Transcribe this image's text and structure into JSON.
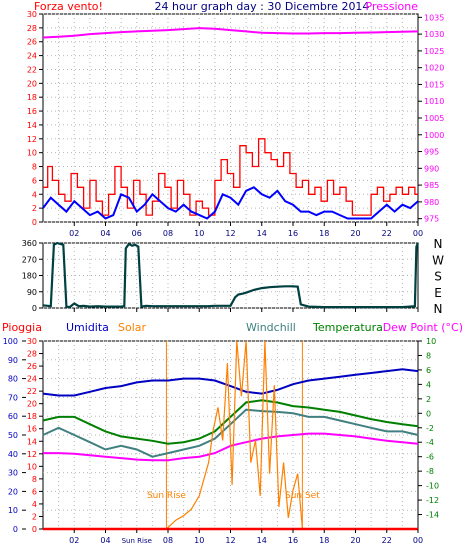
{
  "colors": {
    "wind_speed": "#ff0000",
    "wind_avg": "#0000ff",
    "pressure": "#ff00ff",
    "wind_dir": "#004040",
    "rain": "#ff0000",
    "humidity": "#0000c0",
    "solar": "#ff8000",
    "windchill": "#408080",
    "temperature": "#008000",
    "dew_point": "#ff00ff",
    "sun_marker": "#ff8000",
    "frame": "#000000",
    "grid": "#b8b8b8"
  },
  "header": {
    "left_title": "Forza vento!",
    "center_title": "24 hour graph day : 30 Dicembre 2014",
    "right_title": "Pressione"
  },
  "legend2": {
    "rain": "Pioggia",
    "humidity": "Umidita",
    "solar": "Solar",
    "windchill": "Windchill",
    "temperature": "Temperatura",
    "dew_point": "Dew Point (°C)"
  },
  "sun": {
    "rise_label": "Sun Rise",
    "set_label": "Sun Set",
    "rise_time": 7.9,
    "set_time": 16.6
  },
  "chart_data": [
    {
      "type": "line",
      "name": "wind-and-pressure",
      "xlim": [
        0,
        24
      ],
      "x_ticks": [
        "02",
        "04",
        "06",
        "08",
        "10",
        "12",
        "14",
        "16",
        "18",
        "20",
        "22",
        "00"
      ],
      "ylim_left": [
        0,
        30
      ],
      "y_ticks_left": [
        "0",
        "2",
        "4",
        "6",
        "8",
        "10",
        "12",
        "14",
        "16",
        "18",
        "20",
        "22",
        "24",
        "26",
        "28",
        "30"
      ],
      "ylim_right": [
        974,
        1036
      ],
      "y_ticks_right": [
        "975",
        "980",
        "985",
        "990",
        "995",
        "1000",
        "1005",
        "1010",
        "1015",
        "1020",
        "1025",
        "1030",
        "1035"
      ],
      "series": [
        {
          "key": "wind_speed",
          "x": [
            0,
            0.3,
            0.6,
            1,
            1.4,
            1.8,
            2.2,
            2.6,
            3,
            3.4,
            3.8,
            4.2,
            4.6,
            5,
            5.4,
            5.8,
            6.2,
            6.6,
            7,
            7.4,
            7.8,
            8.2,
            8.6,
            9,
            9.4,
            9.8,
            10.2,
            10.6,
            11,
            11.4,
            11.8,
            12.2,
            12.6,
            13,
            13.4,
            13.8,
            14.2,
            14.6,
            15,
            15.4,
            15.8,
            16.2,
            16.6,
            17,
            17.4,
            17.8,
            18.2,
            18.6,
            19,
            19.4,
            19.8,
            20.2,
            20.6,
            21,
            21.4,
            21.8,
            22.2,
            22.6,
            23,
            23.4,
            23.8
          ],
          "y": [
            5,
            8,
            6,
            4,
            3,
            7,
            5,
            2,
            6,
            3,
            1,
            4,
            8,
            5,
            2,
            6,
            4,
            1,
            3,
            7,
            5,
            2,
            6,
            4,
            1,
            3,
            2,
            1,
            6,
            9,
            7,
            5,
            11,
            10,
            8,
            12,
            10,
            9,
            8,
            10,
            7,
            5,
            6,
            4,
            5,
            3,
            6,
            4,
            5,
            3,
            1,
            1,
            1,
            4,
            5,
            3,
            4,
            5,
            4,
            5,
            4
          ]
        },
        {
          "key": "wind_avg",
          "x": [
            0,
            0.5,
            1,
            1.5,
            2,
            2.5,
            3,
            3.5,
            4,
            4.5,
            5,
            5.5,
            6,
            6.5,
            7,
            7.5,
            8,
            8.5,
            9,
            9.5,
            10,
            10.5,
            11,
            11.5,
            12,
            12.5,
            13,
            13.5,
            14,
            14.5,
            15,
            15.5,
            16,
            16.5,
            17,
            17.5,
            18,
            18.5,
            19,
            19.5,
            20,
            20.5,
            21,
            21.5,
            22,
            22.5,
            23,
            23.5,
            24
          ],
          "y": [
            2,
            3.5,
            2.5,
            1.5,
            3,
            2,
            1,
            1.5,
            0.5,
            1,
            4,
            3.5,
            1.5,
            2.5,
            4,
            3,
            2,
            1.5,
            2.5,
            1.5,
            1,
            0.5,
            1.5,
            4,
            3.5,
            2.5,
            4.5,
            5,
            4,
            3.5,
            4.5,
            3,
            2.5,
            1.5,
            1.5,
            1,
            1.5,
            1.5,
            1,
            0.5,
            0.5,
            0.5,
            0.5,
            1.5,
            2.5,
            1.5,
            2.5,
            2,
            3
          ]
        },
        {
          "key": "pressure",
          "x": [
            0,
            1,
            2,
            3,
            4,
            5,
            6,
            7,
            8,
            9,
            10,
            11,
            12,
            13,
            14,
            15,
            16,
            17,
            18,
            19,
            20,
            21,
            22,
            23,
            24
          ],
          "y": [
            1029,
            1029.2,
            1029.5,
            1030,
            1030.3,
            1030.6,
            1030.8,
            1031,
            1031.2,
            1031.5,
            1031.8,
            1031.6,
            1031.2,
            1030.8,
            1030.4,
            1030.3,
            1030.2,
            1030.2,
            1030.3,
            1030.3,
            1030.4,
            1030.5,
            1030.6,
            1030.7,
            1030.8
          ]
        }
      ]
    },
    {
      "type": "line",
      "name": "wind-direction",
      "xlim": [
        0,
        24
      ],
      "ylim": [
        0,
        360
      ],
      "y_ticks": [
        "0",
        "90",
        "180",
        "270",
        "360"
      ],
      "direction_labels": [
        "N",
        "W",
        "S",
        "E",
        "N"
      ],
      "series": [
        {
          "key": "wind_dir",
          "x": [
            0,
            0.5,
            0.7,
            0.9,
            1.1,
            1.3,
            1.5,
            1.7,
            2,
            2.3,
            2.6,
            3,
            3.5,
            4,
            4.5,
            5,
            5.2,
            5.3,
            5.5,
            5.7,
            5.9,
            6.1,
            6.3,
            6.6,
            7,
            8,
            9,
            10,
            10.5,
            11,
            11.5,
            12,
            12.3,
            12.5,
            12.8,
            13,
            13.5,
            14,
            14.5,
            15,
            15.5,
            16,
            16.3,
            16.5,
            17,
            18,
            19,
            20,
            21,
            22,
            23,
            23.8,
            23.9,
            24
          ],
          "y": [
            15,
            10,
            350,
            360,
            355,
            350,
            8,
            5,
            25,
            10,
            12,
            8,
            10,
            8,
            8,
            8,
            10,
            330,
            355,
            345,
            350,
            340,
            8,
            12,
            10,
            10,
            10,
            10,
            10,
            12,
            12,
            12,
            60,
            75,
            80,
            85,
            100,
            110,
            115,
            118,
            120,
            120,
            118,
            20,
            8,
            5,
            5,
            5,
            5,
            5,
            5,
            10,
            340,
            360
          ]
        }
      ]
    },
    {
      "type": "line",
      "name": "temperature-humidity",
      "xlim": [
        0,
        24
      ],
      "ylim_left_humidity": [
        0,
        100
      ],
      "y_ticks_left_humidity": [
        "0",
        "10",
        "20",
        "30",
        "40",
        "50",
        "60",
        "70",
        "80",
        "90",
        "100"
      ],
      "y_ticks_left_rain": [
        "0",
        "2",
        "4",
        "6",
        "8",
        "10",
        "12",
        "14",
        "16",
        "18",
        "20",
        "22",
        "24",
        "26",
        "28",
        "30"
      ],
      "ylim_right": [
        -16,
        10
      ],
      "y_ticks_right": [
        "-14",
        "-12",
        "-10",
        "-8",
        "-6",
        "-4",
        "-2",
        "0",
        "2",
        "4",
        "6",
        "8",
        "10"
      ],
      "x_ticks": [
        "02",
        "04",
        "Sun Rise",
        "08",
        "10",
        "12",
        "14",
        "16",
        "18",
        "20",
        "22",
        "00"
      ],
      "series": [
        {
          "key": "humidity",
          "x": [
            0,
            1,
            2,
            3,
            4,
            5,
            6,
            7,
            8,
            9,
            10,
            11,
            12,
            13,
            14,
            15,
            16,
            17,
            18,
            19,
            20,
            21,
            22,
            23,
            24
          ],
          "y": [
            72,
            71,
            71,
            73,
            75,
            76,
            78,
            79,
            79,
            80,
            80,
            79,
            76,
            73,
            72,
            74,
            77,
            79,
            80,
            81,
            82,
            83,
            84,
            85,
            84
          ]
        },
        {
          "key": "temperature",
          "x": [
            0,
            1,
            2,
            3,
            4,
            5,
            6,
            7,
            8,
            9,
            10,
            11,
            12,
            13,
            14,
            15,
            16,
            17,
            18,
            19,
            20,
            21,
            22,
            23,
            24
          ],
          "y": [
            -1,
            -0.5,
            -0.5,
            -1.5,
            -2.5,
            -3.2,
            -3.5,
            -3.8,
            -4.2,
            -4.0,
            -3.5,
            -2.5,
            -0.5,
            1.5,
            1.8,
            1.5,
            1.0,
            0.8,
            0.5,
            0.2,
            -0.3,
            -0.8,
            -1.2,
            -1.5,
            -1.8
          ]
        },
        {
          "key": "windchill",
          "x": [
            0,
            1,
            2,
            3,
            4,
            5,
            6,
            7,
            8,
            9,
            10,
            11,
            12,
            13,
            14,
            15,
            16,
            17,
            18,
            19,
            20,
            21,
            22,
            23,
            24
          ],
          "y": [
            -3,
            -2,
            -3,
            -4,
            -5,
            -4.5,
            -5,
            -6,
            -5.5,
            -5,
            -4.5,
            -3.5,
            -1.5,
            0.5,
            0.3,
            0.2,
            0,
            -0.5,
            -0.5,
            -1,
            -1.5,
            -2,
            -2.5,
            -2.5,
            -3
          ]
        },
        {
          "key": "dew_point",
          "x": [
            0,
            1,
            2,
            3,
            4,
            5,
            6,
            7,
            8,
            9,
            10,
            11,
            12,
            13,
            14,
            15,
            16,
            17,
            18,
            19,
            20,
            21,
            22,
            23,
            24
          ],
          "y": [
            -5.5,
            -5.5,
            -5.6,
            -5.8,
            -6,
            -6.2,
            -6.4,
            -6.5,
            -6.5,
            -6.2,
            -6,
            -5.5,
            -4.5,
            -4,
            -3.5,
            -3.2,
            -3,
            -2.8,
            -2.8,
            -3,
            -3.2,
            -3.5,
            -3.8,
            -4,
            -4.2
          ]
        },
        {
          "key": "solar",
          "x": [
            0,
            7.9,
            8.5,
            9,
            9.5,
            10,
            10.3,
            10.6,
            10.9,
            11.2,
            11.5,
            11.8,
            12.1,
            12.4,
            12.7,
            13,
            13.3,
            13.6,
            13.9,
            14.2,
            14.5,
            14.8,
            15.1,
            15.4,
            15.7,
            16,
            16.3,
            16.6,
            24
          ],
          "y": [
            0,
            0,
            8,
            12,
            18,
            30,
            45,
            60,
            90,
            110,
            80,
            150,
            40,
            170,
            120,
            170,
            60,
            80,
            30,
            170,
            50,
            130,
            20,
            60,
            10,
            35,
            50,
            0,
            0
          ]
        },
        {
          "key": "rain",
          "x": [
            0,
            24
          ],
          "y": [
            0,
            0
          ]
        }
      ]
    }
  ]
}
